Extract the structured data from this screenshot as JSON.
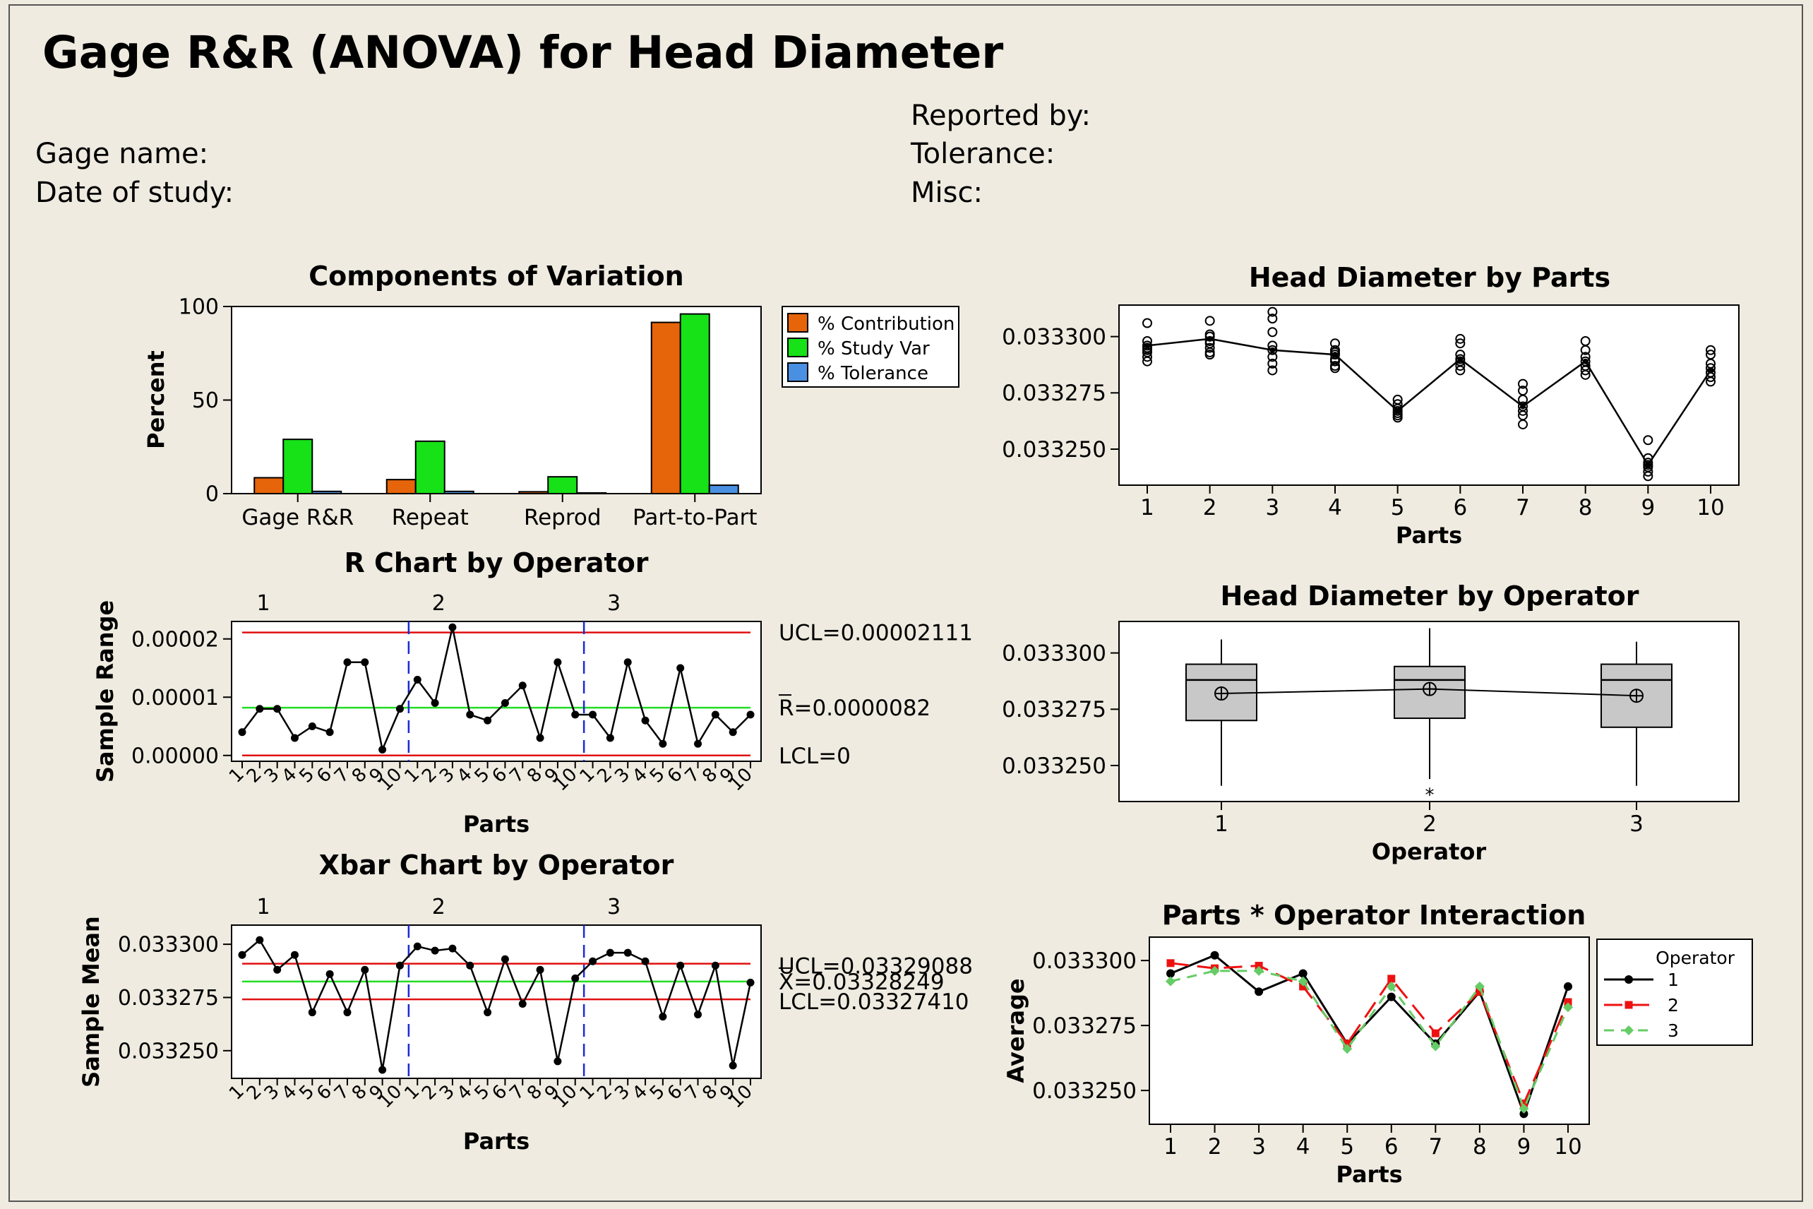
{
  "report": {
    "title": "Gage R&R (ANOVA) for Head Diameter",
    "gage_name": "Gage name:",
    "date_of_study": "Date of study:",
    "reported_by": "Reported by:",
    "tolerance": "Tolerance:",
    "misc": "Misc:"
  },
  "colors": {
    "background": "#efebe0",
    "contribution": "#e6640a",
    "study_var": "#17e117",
    "tolerance": "#4a90e2",
    "limit": "#e01010",
    "center": "#22dd22",
    "divider": "#1a2ad8",
    "op2": "#ee1111",
    "op3": "#66cc66"
  },
  "chart_data": [
    {
      "id": "components",
      "type": "bar",
      "title": "Components of Variation",
      "xlabel": "",
      "ylabel": "Percent",
      "ylim": [
        0,
        100
      ],
      "yticks": [
        0,
        50,
        100
      ],
      "categories": [
        "Gage R&R",
        "Repeat",
        "Reprod",
        "Part-to-Part"
      ],
      "series": [
        {
          "name": "% Contribution",
          "values": [
            8.5,
            7.5,
            1.0,
            91.5
          ]
        },
        {
          "name": "% Study Var",
          "values": [
            29,
            28,
            9,
            96
          ]
        },
        {
          "name": "% Tolerance",
          "values": [
            1.2,
            1.2,
            0.4,
            4.5
          ]
        }
      ],
      "legend": "right"
    },
    {
      "id": "rchart",
      "type": "line",
      "title": "R Chart by Operator",
      "xlabel": "Parts",
      "ylabel": "Sample Range",
      "ylim": [
        -1e-06,
        2.3e-05
      ],
      "yticks": [
        "0.00000",
        "0.00001",
        "0.00002"
      ],
      "ytick_values": [
        0,
        1e-05,
        2e-05
      ],
      "groups": [
        "1",
        "2",
        "3"
      ],
      "xticks": [
        "1",
        "2",
        "3",
        "4",
        "5",
        "6",
        "7",
        "8",
        "9",
        "10"
      ],
      "values": [
        4e-06,
        8e-06,
        8e-06,
        3e-06,
        5e-06,
        4e-06,
        1.6e-05,
        1.6e-05,
        1e-06,
        8e-06,
        1.3e-05,
        9e-06,
        2.2e-05,
        7e-06,
        6e-06,
        9e-06,
        1.2e-05,
        3e-06,
        1.6e-05,
        7e-06,
        7e-06,
        3e-06,
        1.6e-05,
        6e-06,
        2e-06,
        1.5e-05,
        2e-06,
        7e-06,
        4e-06,
        7e-06
      ],
      "ucl": 2.111e-05,
      "center": 8.2e-06,
      "lcl": 0,
      "ucl_label": "UCL=0.00002111",
      "center_label": "R=0.0000082",
      "lcl_label": "LCL=0"
    },
    {
      "id": "xbar",
      "type": "line",
      "title": "Xbar Chart by Operator",
      "xlabel": "Parts",
      "ylabel": "Sample Mean",
      "ylim": [
        0.033237,
        0.033309
      ],
      "yticks": [
        "0.033250",
        "0.033275",
        "0.033300"
      ],
      "ytick_values": [
        0.03325,
        0.033275,
        0.0333
      ],
      "groups": [
        "1",
        "2",
        "3"
      ],
      "xticks": [
        "1",
        "2",
        "3",
        "4",
        "5",
        "6",
        "7",
        "8",
        "9",
        "10"
      ],
      "values": [
        0.033295,
        0.033302,
        0.033288,
        0.033295,
        0.033268,
        0.033286,
        0.033268,
        0.033288,
        0.033241,
        0.03329,
        0.033299,
        0.033297,
        0.033298,
        0.03329,
        0.033268,
        0.033293,
        0.033272,
        0.033288,
        0.033245,
        0.033284,
        0.033292,
        0.033296,
        0.033296,
        0.033292,
        0.033266,
        0.03329,
        0.033267,
        0.03329,
        0.033243,
        0.033282
      ],
      "ucl": 0.03329088,
      "center": 0.03328249,
      "lcl": 0.0332741,
      "ucl_label": "UCL=0.03329088",
      "center_label": "X=0.03328249",
      "lcl_label": "LCL=0.03327410"
    },
    {
      "id": "byparts",
      "type": "scatter",
      "title": "Head Diameter by Parts",
      "xlabel": "Parts",
      "ylabel": "",
      "ylim": [
        0.033234,
        0.033314
      ],
      "yticks": [
        "0.033250",
        "0.033275",
        "0.033300"
      ],
      "ytick_values": [
        0.03325,
        0.033275,
        0.0333
      ],
      "categories": [
        "1",
        "2",
        "3",
        "4",
        "5",
        "6",
        "7",
        "8",
        "9",
        "10"
      ],
      "points": [
        [
          0.033306,
          0.033298,
          0.033296,
          0.033295,
          0.033294,
          0.033293,
          0.033291,
          0.033289
        ],
        [
          0.033307,
          0.033301,
          0.0333,
          0.033298,
          0.033297,
          0.033295,
          0.033293,
          0.033292
        ],
        [
          0.033311,
          0.033308,
          0.033302,
          0.033296,
          0.033294,
          0.033291,
          0.033288,
          0.033285
        ],
        [
          0.033297,
          0.033294,
          0.033293,
          0.033292,
          0.03329,
          0.033289,
          0.033287,
          0.033286
        ],
        [
          0.033272,
          0.03327,
          0.033268,
          0.033267,
          0.033266,
          0.033265,
          0.033264
        ],
        [
          0.033299,
          0.033297,
          0.033292,
          0.03329,
          0.033289,
          0.033287,
          0.033285
        ],
        [
          0.033279,
          0.033276,
          0.033272,
          0.033269,
          0.033267,
          0.033265,
          0.033261
        ],
        [
          0.033298,
          0.033294,
          0.033291,
          0.033289,
          0.033287,
          0.033285,
          0.033283
        ],
        [
          0.033254,
          0.033246,
          0.033244,
          0.033243,
          0.033242,
          0.03324,
          0.033238
        ],
        [
          0.033294,
          0.033292,
          0.033288,
          0.033286,
          0.033284,
          0.033282,
          0.03328
        ]
      ],
      "means": [
        0.033296,
        0.033299,
        0.033294,
        0.033292,
        0.033267,
        0.03329,
        0.033269,
        0.033289,
        0.033243,
        0.033285
      ]
    },
    {
      "id": "byoperator",
      "type": "box",
      "title": "Head Diameter by Operator",
      "xlabel": "Operator",
      "ylabel": "",
      "ylim": [
        0.033234,
        0.033314
      ],
      "yticks": [
        "0.033250",
        "0.033275",
        "0.033300"
      ],
      "ytick_values": [
        0.03325,
        0.033275,
        0.0333
      ],
      "categories": [
        "1",
        "2",
        "3"
      ],
      "boxes": [
        {
          "min": 0.033241,
          "q1": 0.03327,
          "median": 0.033288,
          "q3": 0.033295,
          "max": 0.033306,
          "mean": 0.033282
        },
        {
          "min": 0.033244,
          "q1": 0.033271,
          "median": 0.033288,
          "q3": 0.033294,
          "max": 0.033311,
          "mean": 0.033284,
          "outlier": 0.033238
        },
        {
          "min": 0.033241,
          "q1": 0.033267,
          "median": 0.033288,
          "q3": 0.033295,
          "max": 0.033305,
          "mean": 0.033281
        }
      ]
    },
    {
      "id": "interaction",
      "type": "line",
      "title": "Parts * Operator Interaction",
      "xlabel": "Parts",
      "ylabel": "Average",
      "ylim": [
        0.033237,
        0.033309
      ],
      "yticks": [
        "0.033250",
        "0.033275",
        "0.033300"
      ],
      "ytick_values": [
        0.03325,
        0.033275,
        0.0333
      ],
      "categories": [
        "1",
        "2",
        "3",
        "4",
        "5",
        "6",
        "7",
        "8",
        "9",
        "10"
      ],
      "legend_title": "Operator",
      "series": [
        {
          "name": "1",
          "values": [
            0.033295,
            0.033302,
            0.033288,
            0.033295,
            0.033268,
            0.033286,
            0.033268,
            0.033288,
            0.033241,
            0.03329
          ]
        },
        {
          "name": "2",
          "values": [
            0.033299,
            0.033297,
            0.033298,
            0.03329,
            0.033268,
            0.033293,
            0.033272,
            0.033288,
            0.033245,
            0.033284
          ]
        },
        {
          "name": "3",
          "values": [
            0.033292,
            0.033296,
            0.033296,
            0.033292,
            0.033266,
            0.03329,
            0.033267,
            0.03329,
            0.033243,
            0.033282
          ]
        }
      ]
    }
  ]
}
